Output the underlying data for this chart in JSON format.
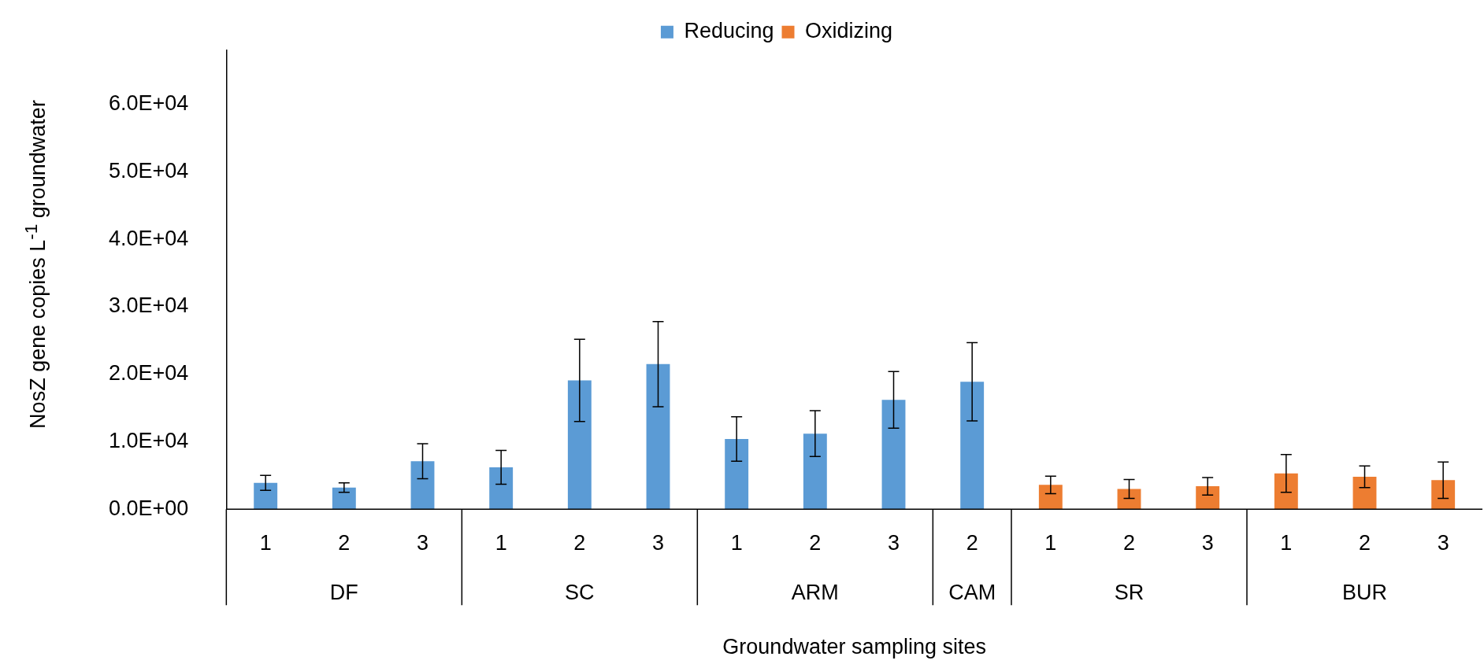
{
  "chart_data": {
    "type": "bar",
    "xlabel": "Groundwater sampling sites",
    "ylabel": "NosZ gene copies L$^{-1}$ groundwater",
    "categories": [
      "1",
      "2",
      "3",
      "1",
      "2",
      "3",
      "1",
      "2",
      "3",
      "2",
      "1",
      "2",
      "3",
      "1",
      "2",
      "3"
    ],
    "annotations": [
      "DF",
      "SC",
      "ARM",
      "CAM",
      "SR",
      "BUR"
    ],
    "series": [
      {
        "name": "Reducing",
        "color": "#5b9bd5",
        "values": [
          3900,
          3200,
          7100,
          6200,
          19100,
          21500,
          10400,
          11200,
          16200,
          18900,
          null,
          null,
          null,
          null,
          null,
          null
        ],
        "errors": [
          1100,
          700,
          2600,
          2500,
          6100,
          6300,
          3300,
          3400,
          4200,
          5800,
          null,
          null,
          null,
          null,
          null,
          null
        ]
      },
      {
        "name": "Oxidizing",
        "color": "#ed7d31",
        "values": [
          null,
          null,
          null,
          null,
          null,
          null,
          null,
          null,
          null,
          null,
          3600,
          3000,
          3400,
          5300,
          4800,
          4300
        ],
        "errors": [
          null,
          null,
          null,
          null,
          null,
          null,
          null,
          null,
          null,
          null,
          1300,
          1400,
          1300,
          2800,
          1600,
          2700
        ]
      }
    ],
    "ylim": [
      0,
      68000
    ],
    "yticks": [
      {
        "value": 0,
        "label": "0.0E+00"
      },
      {
        "value": 10000,
        "label": "1.0E+04"
      },
      {
        "value": 20000,
        "label": "2.0E+04"
      },
      {
        "value": 30000,
        "label": "3.0E+04"
      },
      {
        "value": 40000,
        "label": "4.0E+04"
      },
      {
        "value": 50000,
        "label": "5.0E+04"
      },
      {
        "value": 60000,
        "label": "6.0E+04"
      }
    ],
    "grid": false,
    "legend": "top"
  }
}
